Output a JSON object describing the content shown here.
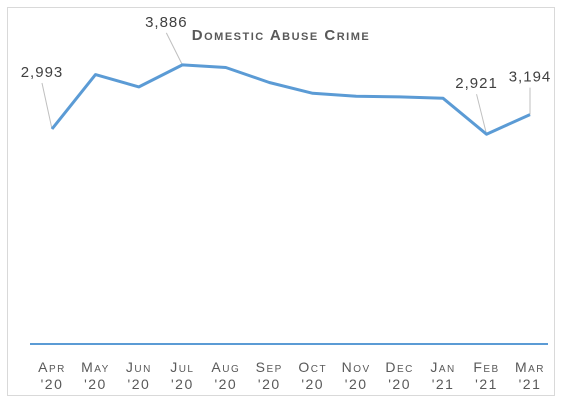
{
  "chart_data": {
    "type": "line",
    "title": "Domestic Abuse Crime",
    "categories": [
      "Apr '20",
      "May '20",
      "Jun '20",
      "Jul '20",
      "Aug '20",
      "Sep '20",
      "Oct '20",
      "Nov '20",
      "Dec '20",
      "Jan '21",
      "Feb '21",
      "Mar '21"
    ],
    "category_lines": [
      [
        "Apr",
        "'20"
      ],
      [
        "May",
        "'20"
      ],
      [
        "Jun",
        "'20"
      ],
      [
        "Jul",
        "'20"
      ],
      [
        "Aug",
        "'20"
      ],
      [
        "Sep",
        "'20"
      ],
      [
        "Oct",
        "'20"
      ],
      [
        "Nov",
        "'20"
      ],
      [
        "Dec",
        "'20"
      ],
      [
        "Jan",
        "'21"
      ],
      [
        "Feb",
        "'21"
      ],
      [
        "Mar",
        "'21"
      ]
    ],
    "series": [
      {
        "values": [
          2993,
          3750,
          3580,
          3886,
          3850,
          3640,
          3490,
          3450,
          3440,
          3420,
          2921,
          3194
        ],
        "color": "#5b9bd5"
      }
    ],
    "data_labels": [
      {
        "index": 0,
        "text": "2,993"
      },
      {
        "index": 3,
        "text": "3,886"
      },
      {
        "index": 10,
        "text": "2,921"
      },
      {
        "index": 11,
        "text": "3,194"
      }
    ],
    "ylim": [
      0,
      4650
    ],
    "grid": false,
    "legend": "none",
    "axis_color": "#5b9bd5"
  }
}
